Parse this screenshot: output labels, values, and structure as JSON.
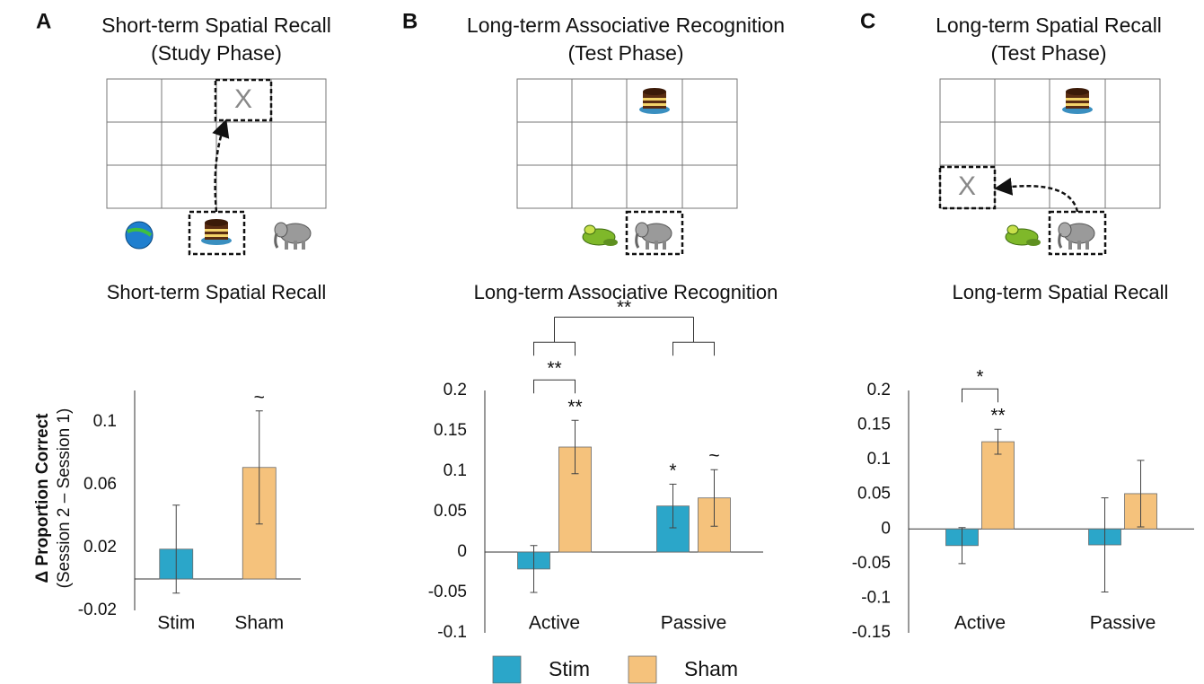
{
  "panels": [
    {
      "letter": "A",
      "diagram_title": [
        "Short-term Spatial Recall",
        "(Study Phase)"
      ],
      "grid_mark": "X"
    },
    {
      "letter": "B",
      "diagram_title": [
        "Long-term Associative Recognition",
        "(Test Phase)"
      ]
    },
    {
      "letter": "C",
      "diagram_title": [
        "Long-term Spatial Recall",
        "(Test Phase)"
      ],
      "grid_mark": "X"
    }
  ],
  "chart_data": [
    {
      "type": "bar",
      "title": "Short-term Spatial Recall",
      "ylabel": [
        "Δ Proportion Correct",
        "(Session 2 – Session 1)"
      ],
      "categories": [
        "Stim",
        "Sham"
      ],
      "values": [
        0.019,
        0.071
      ],
      "errors": [
        0.028,
        0.036
      ],
      "colors": [
        "#2ba6c9",
        "#f5c27c"
      ],
      "markers": [
        null,
        "~"
      ],
      "ylim": [
        -0.02,
        0.12
      ],
      "yticks": [
        -0.02,
        0.02,
        0.06,
        0.1
      ]
    },
    {
      "type": "grouped_bar",
      "title": "Long-term Associative Recognition",
      "categories": [
        "Active",
        "Passive"
      ],
      "series": [
        {
          "name": "Stim",
          "color": "#2ba6c9",
          "values": [
            -0.021,
            0.057
          ],
          "errors": [
            0.029,
            0.027
          ],
          "markers": [
            null,
            "*"
          ]
        },
        {
          "name": "Sham",
          "color": "#f5c27c",
          "values": [
            0.13,
            0.067
          ],
          "errors": [
            0.033,
            0.035
          ],
          "markers": [
            "**",
            "~"
          ]
        }
      ],
      "ylim": [
        -0.1,
        0.2
      ],
      "yticks": [
        -0.1,
        -0.05,
        0,
        0.05,
        0.1,
        0.15,
        0.2
      ],
      "brackets": [
        {
          "label": "**",
          "category": "Active"
        },
        {
          "label": "**",
          "categories": [
            "Active",
            "Passive"
          ]
        }
      ],
      "legend": "bottom"
    },
    {
      "type": "grouped_bar",
      "title": "Long-term Spatial Recall",
      "categories": [
        "Active",
        "Passive"
      ],
      "series": [
        {
          "name": "Stim",
          "color": "#2ba6c9",
          "values": [
            -0.024,
            -0.023
          ],
          "errors": [
            0.026,
            0.068
          ],
          "markers": [
            null,
            null
          ]
        },
        {
          "name": "Sham",
          "color": "#f5c27c",
          "values": [
            0.126,
            0.051
          ],
          "errors": [
            0.018,
            0.048
          ],
          "markers": [
            "**",
            null
          ]
        }
      ],
      "ylim": [
        -0.15,
        0.2
      ],
      "yticks": [
        -0.15,
        -0.1,
        -0.05,
        0,
        0.05,
        0.1,
        0.15,
        0.2
      ],
      "brackets": [
        {
          "label": "*",
          "category": "Active"
        }
      ]
    }
  ]
}
